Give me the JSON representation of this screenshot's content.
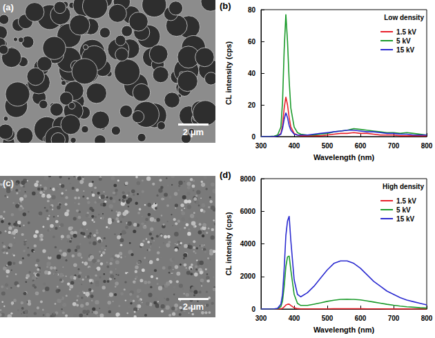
{
  "images": [
    {
      "label": "(a)",
      "scale_bar": "2 μm"
    },
    {
      "label": "(c)",
      "scale_bar": "2 μm"
    }
  ],
  "chart_data": [
    {
      "type": "line",
      "label": "(b)",
      "legend_title": "Low density",
      "x_label": "Wavelength (nm)",
      "y_label": "CL intensity (cps)",
      "xlim": [
        300,
        800
      ],
      "xticks": [
        300,
        400,
        500,
        600,
        700,
        800
      ],
      "ylim": [
        0,
        80
      ],
      "yticks": [
        0,
        20,
        40,
        60,
        80
      ],
      "grid": false,
      "legend": "upper right",
      "x": [
        300,
        320,
        340,
        350,
        360,
        365,
        370,
        375,
        380,
        385,
        390,
        400,
        410,
        420,
        440,
        460,
        480,
        500,
        520,
        540,
        560,
        580,
        600,
        620,
        640,
        660,
        680,
        700,
        720,
        740,
        760,
        780,
        800
      ],
      "series": [
        {
          "name": "1.5 kV",
          "color": "#e8202a",
          "values": [
            0,
            0,
            0,
            0.5,
            2,
            7,
            18,
            25,
            20,
            12,
            6,
            2,
            1,
            0.5,
            0.5,
            0.5,
            0.5,
            1,
            1.5,
            2,
            2,
            2.5,
            2,
            2,
            1.5,
            1,
            1,
            1,
            0.5,
            0.5,
            0.5,
            0.5,
            0.5
          ]
        },
        {
          "name": "5 kV",
          "color": "#1a9a2a",
          "values": [
            0,
            0,
            0.3,
            1,
            6,
            22,
            55,
            77,
            60,
            35,
            18,
            6,
            2.5,
            1.5,
            1,
            1,
            1.5,
            2,
            3,
            3.5,
            4,
            5,
            4.5,
            4,
            3.5,
            3,
            2.5,
            2.5,
            2,
            2.5,
            2,
            1.5,
            1
          ]
        },
        {
          "name": "15 kV",
          "color": "#2a2ad0",
          "values": [
            0,
            0,
            0,
            0.3,
            1.5,
            5,
            11,
            15,
            12,
            7,
            4,
            1.5,
            1,
            1,
            1,
            1.5,
            2,
            2.5,
            3,
            3.5,
            4,
            4,
            3.5,
            3,
            3,
            2.5,
            2,
            2,
            1.5,
            1.5,
            1,
            1,
            1
          ]
        }
      ]
    },
    {
      "type": "line",
      "label": "(d)",
      "legend_title": "High density",
      "x_label": "Wavelength (nm)",
      "y_label": "CL intensity (cps)",
      "xlim": [
        300,
        800
      ],
      "xticks": [
        300,
        400,
        500,
        600,
        700,
        800
      ],
      "ylim": [
        0,
        8000
      ],
      "yticks": [
        0,
        2000,
        4000,
        6000,
        8000
      ],
      "grid": false,
      "legend": "upper right",
      "x": [
        300,
        320,
        340,
        350,
        360,
        365,
        370,
        375,
        380,
        385,
        390,
        400,
        410,
        420,
        440,
        460,
        480,
        500,
        520,
        540,
        560,
        580,
        600,
        620,
        640,
        660,
        680,
        700,
        720,
        740,
        760,
        780,
        800
      ],
      "series": [
        {
          "name": "1.5 kV",
          "color": "#e8202a",
          "values": [
            0,
            0,
            0,
            2,
            15,
            45,
            130,
            240,
            290,
            300,
            220,
            80,
            25,
            10,
            8,
            8,
            10,
            12,
            14,
            15,
            15,
            15,
            14,
            12,
            10,
            8,
            7,
            6,
            5,
            4,
            3,
            3,
            2
          ]
        },
        {
          "name": "5 kV",
          "color": "#1a9a2a",
          "values": [
            0,
            0,
            5,
            20,
            150,
            500,
            1400,
            2600,
            3200,
            3250,
            2400,
            900,
            350,
            220,
            220,
            300,
            380,
            470,
            540,
            590,
            600,
            590,
            560,
            500,
            430,
            360,
            290,
            230,
            180,
            140,
            110,
            80,
            60
          ]
        },
        {
          "name": "15 kV",
          "color": "#2a2ad0",
          "values": [
            0,
            0,
            10,
            40,
            300,
            900,
            2500,
            4500,
            5400,
            5700,
            4200,
            1800,
            900,
            750,
            1000,
            1400,
            1900,
            2400,
            2800,
            2950,
            2950,
            2800,
            2500,
            2100,
            1700,
            1400,
            1100,
            900,
            700,
            550,
            450,
            350,
            250
          ]
        }
      ]
    }
  ]
}
